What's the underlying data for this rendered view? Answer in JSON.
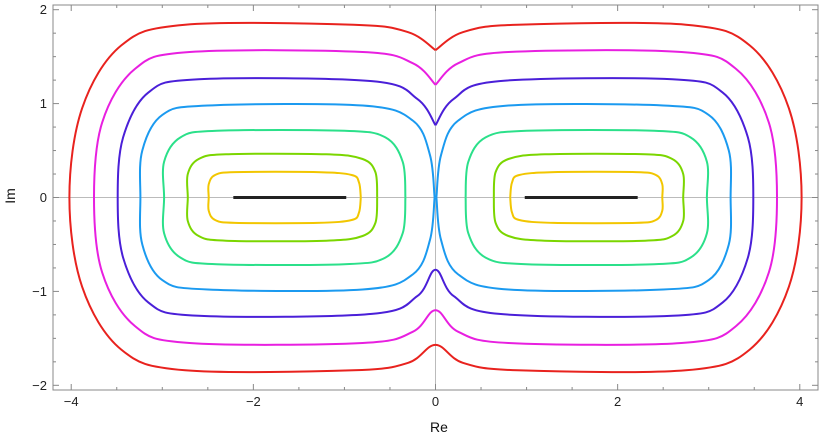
{
  "chart_data": {
    "type": "line",
    "xlabel": "Re",
    "ylabel": "Im",
    "xlim": [
      -4.2,
      4.2
    ],
    "ylim": [
      -2.05,
      2.05
    ],
    "x_ticks": [
      -4,
      -2,
      0,
      2,
      4
    ],
    "x_tick_labels": [
      "−4",
      "−2",
      "0",
      "2",
      "4"
    ],
    "y_ticks": [
      -2,
      -1,
      0,
      1,
      2
    ],
    "y_tick_labels": [
      "−2",
      "−1",
      "0",
      "1",
      "2"
    ],
    "grid": false,
    "frame": true,
    "axes_through_origin": true,
    "segments": [
      {
        "x": [
          -2.22,
          -0.98
        ],
        "y": [
          0,
          0
        ],
        "color": "#222222"
      },
      {
        "x": [
          0.98,
          2.22
        ],
        "y": [
          0,
          0
        ],
        "color": "#222222"
      }
    ],
    "series": [
      {
        "color": "#f2c600",
        "points": [
          [
            -0.82,
            0
          ],
          [
            -0.84,
            0.16
          ],
          [
            -0.92,
            0.24
          ],
          [
            -1.3,
            0.27
          ],
          [
            -2.2,
            0.27
          ],
          [
            -2.42,
            0.24
          ],
          [
            -2.49,
            0.14
          ],
          [
            -2.49,
            0
          ],
          [
            -2.49,
            -0.14
          ],
          [
            -2.42,
            -0.24
          ],
          [
            -2.2,
            -0.27
          ],
          [
            -1.3,
            -0.27
          ],
          [
            -0.92,
            -0.24
          ],
          [
            -0.84,
            -0.16
          ],
          [
            -0.82,
            0
          ]
        ]
      },
      {
        "color": "#f2c600",
        "points": [
          [
            0.82,
            0
          ],
          [
            0.84,
            0.16
          ],
          [
            0.92,
            0.24
          ],
          [
            1.3,
            0.27
          ],
          [
            2.2,
            0.27
          ],
          [
            2.42,
            0.24
          ],
          [
            2.49,
            0.14
          ],
          [
            2.49,
            0
          ],
          [
            2.49,
            -0.14
          ],
          [
            2.42,
            -0.24
          ],
          [
            2.2,
            -0.27
          ],
          [
            1.3,
            -0.27
          ],
          [
            0.92,
            -0.24
          ],
          [
            0.84,
            -0.16
          ],
          [
            0.82,
            0
          ]
        ]
      },
      {
        "color": "#7bd600",
        "points": [
          [
            -0.64,
            0
          ],
          [
            -0.66,
            0.27
          ],
          [
            -0.8,
            0.41
          ],
          [
            -1.2,
            0.46
          ],
          [
            -2.3,
            0.46
          ],
          [
            -2.6,
            0.41
          ],
          [
            -2.72,
            0.25
          ],
          [
            -2.72,
            0
          ],
          [
            -2.72,
            -0.25
          ],
          [
            -2.6,
            -0.41
          ],
          [
            -2.3,
            -0.46
          ],
          [
            -1.2,
            -0.46
          ],
          [
            -0.8,
            -0.41
          ],
          [
            -0.66,
            -0.27
          ],
          [
            -0.64,
            0
          ]
        ]
      },
      {
        "color": "#7bd600",
        "points": [
          [
            0.64,
            0
          ],
          [
            0.66,
            0.27
          ],
          [
            0.8,
            0.41
          ],
          [
            1.2,
            0.46
          ],
          [
            2.3,
            0.46
          ],
          [
            2.6,
            0.41
          ],
          [
            2.72,
            0.25
          ],
          [
            2.72,
            0
          ],
          [
            2.72,
            -0.25
          ],
          [
            2.6,
            -0.41
          ],
          [
            2.3,
            -0.46
          ],
          [
            1.2,
            -0.46
          ],
          [
            0.8,
            -0.41
          ],
          [
            0.66,
            -0.27
          ],
          [
            0.64,
            0
          ]
        ]
      },
      {
        "color": "#2be08a",
        "points": [
          [
            -0.33,
            0
          ],
          [
            -0.36,
            0.38
          ],
          [
            -0.55,
            0.64
          ],
          [
            -1.0,
            0.71
          ],
          [
            -2.4,
            0.71
          ],
          [
            -2.8,
            0.64
          ],
          [
            -2.98,
            0.38
          ],
          [
            -2.98,
            0
          ],
          [
            -2.98,
            -0.38
          ],
          [
            -2.8,
            -0.64
          ],
          [
            -2.4,
            -0.71
          ],
          [
            -1.0,
            -0.71
          ],
          [
            -0.55,
            -0.64
          ],
          [
            -0.36,
            -0.38
          ],
          [
            -0.33,
            0
          ]
        ]
      },
      {
        "color": "#2be08a",
        "points": [
          [
            0.33,
            0
          ],
          [
            0.36,
            0.38
          ],
          [
            0.55,
            0.64
          ],
          [
            1.0,
            0.71
          ],
          [
            2.4,
            0.71
          ],
          [
            2.8,
            0.64
          ],
          [
            2.98,
            0.38
          ],
          [
            2.98,
            0
          ],
          [
            2.98,
            -0.38
          ],
          [
            2.8,
            -0.64
          ],
          [
            2.4,
            -0.71
          ],
          [
            1.0,
            -0.71
          ],
          [
            0.55,
            -0.64
          ],
          [
            0.36,
            -0.38
          ],
          [
            0.33,
            0
          ]
        ]
      },
      {
        "color": "#1b9af0",
        "points": [
          [
            -0.01,
            0
          ],
          [
            -0.06,
            0.45
          ],
          [
            -0.25,
            0.82
          ],
          [
            -0.8,
            0.98
          ],
          [
            -2.5,
            0.98
          ],
          [
            -3.0,
            0.88
          ],
          [
            -3.22,
            0.5
          ],
          [
            -3.24,
            0
          ],
          [
            -3.22,
            -0.5
          ],
          [
            -3.0,
            -0.88
          ],
          [
            -2.5,
            -0.98
          ],
          [
            -0.8,
            -0.98
          ],
          [
            -0.25,
            -0.82
          ],
          [
            -0.06,
            -0.45
          ],
          [
            -0.01,
            0
          ]
        ]
      },
      {
        "color": "#1b9af0",
        "points": [
          [
            0.01,
            0
          ],
          [
            0.06,
            0.45
          ],
          [
            0.25,
            0.82
          ],
          [
            0.8,
            0.98
          ],
          [
            2.5,
            0.98
          ],
          [
            3.0,
            0.88
          ],
          [
            3.22,
            0.5
          ],
          [
            3.24,
            0
          ],
          [
            3.22,
            -0.5
          ],
          [
            3.0,
            -0.88
          ],
          [
            2.5,
            -0.98
          ],
          [
            0.8,
            -0.98
          ],
          [
            0.25,
            -0.82
          ],
          [
            0.06,
            -0.45
          ],
          [
            0.01,
            0
          ]
        ]
      },
      {
        "color": "#4a1fd8",
        "points": [
          [
            0,
            0.77
          ],
          [
            -0.2,
            1.05
          ],
          [
            -0.7,
            1.24
          ],
          [
            -2.6,
            1.26
          ],
          [
            -3.15,
            1.12
          ],
          [
            -3.43,
            0.64
          ],
          [
            -3.49,
            0
          ],
          [
            -3.43,
            -0.64
          ],
          [
            -3.15,
            -1.12
          ],
          [
            -2.6,
            -1.26
          ],
          [
            -0.7,
            -1.24
          ],
          [
            -0.2,
            -1.05
          ],
          [
            0,
            -0.77
          ],
          [
            0.2,
            -1.05
          ],
          [
            0.7,
            -1.24
          ],
          [
            2.6,
            -1.26
          ],
          [
            3.15,
            -1.12
          ],
          [
            3.43,
            -0.64
          ],
          [
            3.49,
            0
          ],
          [
            3.43,
            0.64
          ],
          [
            3.15,
            1.12
          ],
          [
            2.6,
            1.26
          ],
          [
            0.7,
            1.24
          ],
          [
            0.2,
            1.05
          ],
          [
            0,
            0.77
          ]
        ]
      },
      {
        "color": "#e81fe0",
        "points": [
          [
            0,
            1.2
          ],
          [
            -0.25,
            1.43
          ],
          [
            -0.8,
            1.55
          ],
          [
            -2.7,
            1.55
          ],
          [
            -3.3,
            1.37
          ],
          [
            -3.66,
            0.8
          ],
          [
            -3.75,
            0
          ],
          [
            -3.66,
            -0.8
          ],
          [
            -3.3,
            -1.37
          ],
          [
            -2.7,
            -1.55
          ],
          [
            -0.8,
            -1.55
          ],
          [
            -0.25,
            -1.43
          ],
          [
            0,
            -1.2
          ],
          [
            0.25,
            -1.43
          ],
          [
            0.8,
            -1.55
          ],
          [
            2.7,
            -1.55
          ],
          [
            3.3,
            -1.37
          ],
          [
            3.66,
            -0.8
          ],
          [
            3.75,
            0
          ],
          [
            3.66,
            0.8
          ],
          [
            3.3,
            1.37
          ],
          [
            2.7,
            1.55
          ],
          [
            0.8,
            1.55
          ],
          [
            0.25,
            1.43
          ],
          [
            0,
            1.2
          ]
        ]
      },
      {
        "color": "#e8221e",
        "points": [
          [
            0,
            1.57
          ],
          [
            -0.3,
            1.76
          ],
          [
            -0.9,
            1.84
          ],
          [
            -2.75,
            1.84
          ],
          [
            -3.45,
            1.62
          ],
          [
            -3.88,
            0.95
          ],
          [
            -4.02,
            0
          ],
          [
            -3.88,
            -0.95
          ],
          [
            -3.45,
            -1.62
          ],
          [
            -2.75,
            -1.84
          ],
          [
            -0.9,
            -1.84
          ],
          [
            -0.3,
            -1.76
          ],
          [
            0,
            -1.57
          ],
          [
            0.3,
            -1.76
          ],
          [
            0.9,
            -1.84
          ],
          [
            2.75,
            -1.84
          ],
          [
            3.45,
            -1.62
          ],
          [
            3.88,
            -0.95
          ],
          [
            4.02,
            0
          ],
          [
            3.88,
            0.95
          ],
          [
            3.45,
            1.62
          ],
          [
            2.75,
            1.84
          ],
          [
            0.9,
            1.84
          ],
          [
            0.3,
            1.76
          ],
          [
            0,
            1.57
          ]
        ]
      }
    ]
  }
}
